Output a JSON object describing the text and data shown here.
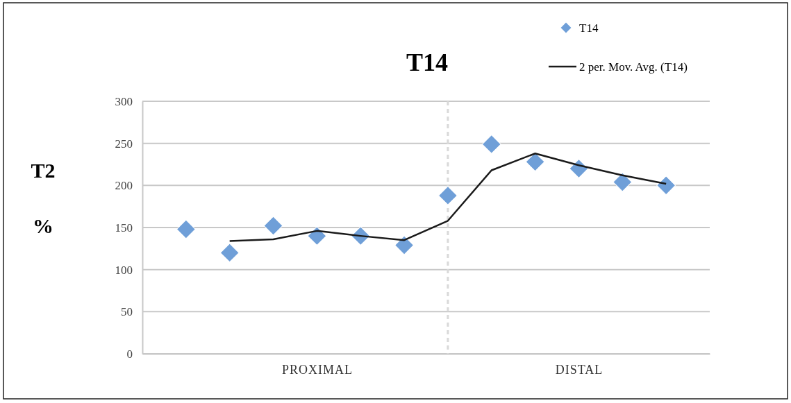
{
  "chart_data": {
    "type": "scatter",
    "title": "T14",
    "ylabel": "T2 %",
    "categories": [
      null,
      null,
      null,
      "PROXIMAL",
      null,
      null,
      null,
      null,
      null,
      "DISTAL",
      null,
      null
    ],
    "series": [
      {
        "name": "T14",
        "color": "#6f9fd8",
        "marker": "diamond",
        "values": [
          148,
          120,
          152,
          140,
          140,
          129,
          188,
          249,
          228,
          220,
          204,
          200
        ]
      },
      {
        "name": "2 per. Mov. Avg. (T14)",
        "type": "line",
        "color": "#1a1a1a",
        "marker": "none",
        "line_style": "solid",
        "values": [
          null,
          134,
          136,
          146,
          140,
          135,
          158,
          218,
          238,
          224,
          212,
          202
        ]
      }
    ],
    "ylim": [
      0,
      300
    ],
    "yticks": [
      0,
      50,
      100,
      150,
      200,
      250,
      300
    ],
    "grid": "y",
    "legend": "top right"
  }
}
